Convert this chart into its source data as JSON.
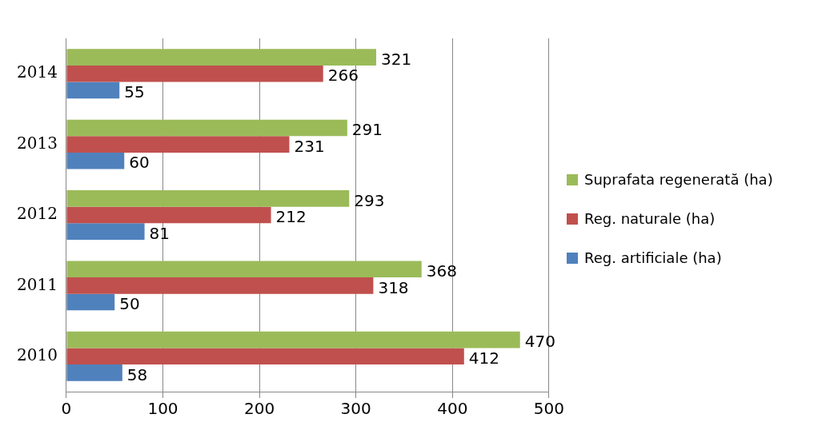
{
  "chart_data": {
    "type": "bar",
    "orientation": "horizontal",
    "categories": [
      "2014",
      "2013",
      "2012",
      "2011",
      "2010"
    ],
    "series": [
      {
        "name": "Suprafata regenerată (ha)",
        "color": "#9bbb59",
        "values": [
          321,
          291,
          293,
          368,
          470
        ]
      },
      {
        "name": "Reg. naturale (ha)",
        "color": "#c0504d",
        "values": [
          266,
          231,
          212,
          318,
          412
        ]
      },
      {
        "name": "Reg. artificiale (ha)",
        "color": "#4f81bd",
        "values": [
          55,
          60,
          81,
          50,
          58
        ]
      }
    ],
    "xlim": [
      0,
      500
    ],
    "xticks": [
      0,
      100,
      200,
      300,
      400,
      500
    ],
    "grid": "x",
    "legend": "right",
    "data_labels": true
  }
}
